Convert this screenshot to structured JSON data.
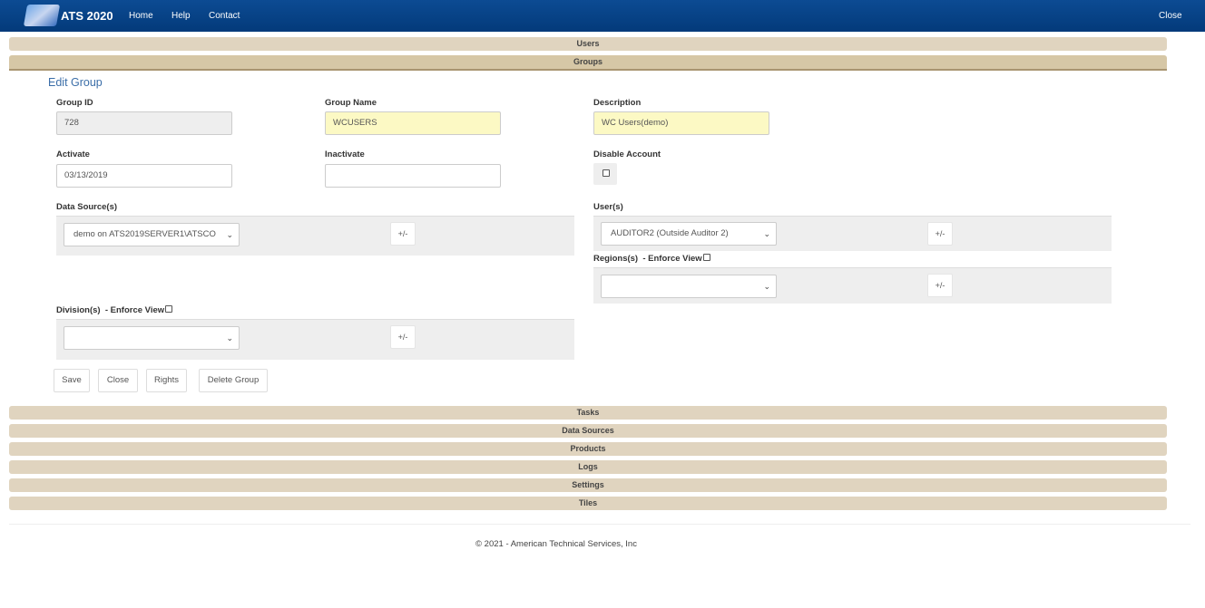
{
  "nav": {
    "brand": "ATS 2020",
    "links": [
      "Home",
      "Help",
      "Contact"
    ],
    "close": "Close"
  },
  "sections_top": {
    "users": "Users",
    "groups": "Groups"
  },
  "form": {
    "heading": "Edit Group",
    "group_id": {
      "label": "Group ID",
      "value": "728"
    },
    "group_name": {
      "label": "Group Name",
      "value": "WCUSERS"
    },
    "description": {
      "label": "Description",
      "value": "WC Users(demo)"
    },
    "activate": {
      "label": "Activate",
      "value": "03/13/2019"
    },
    "inactivate": {
      "label": "Inactivate",
      "value": ""
    },
    "disable_account": {
      "label": "Disable Account",
      "checked": false
    },
    "data_sources": {
      "label": "Data Source(s)",
      "selected": "demo on ATS2019SERVER1\\ATSCO",
      "toggle": "+/-"
    },
    "users": {
      "label": "User(s)",
      "selected": "AUDITOR2 (Outside Auditor 2)",
      "toggle": "+/-"
    },
    "regions": {
      "label": "Regions(s)  - Enforce View",
      "selected": "",
      "toggle": "+/-",
      "enforce": false
    },
    "divisions": {
      "label": "Division(s)  - Enforce View",
      "selected": "",
      "toggle": "+/-",
      "enforce": false
    },
    "buttons": {
      "save": "Save",
      "close": "Close",
      "rights": "Rights",
      "delete": "Delete Group"
    }
  },
  "sections_bottom": [
    "Tasks",
    "Data Sources",
    "Products",
    "Logs",
    "Settings",
    "Tiles"
  ],
  "footer": "© 2021 - American Technical Services, Inc"
}
